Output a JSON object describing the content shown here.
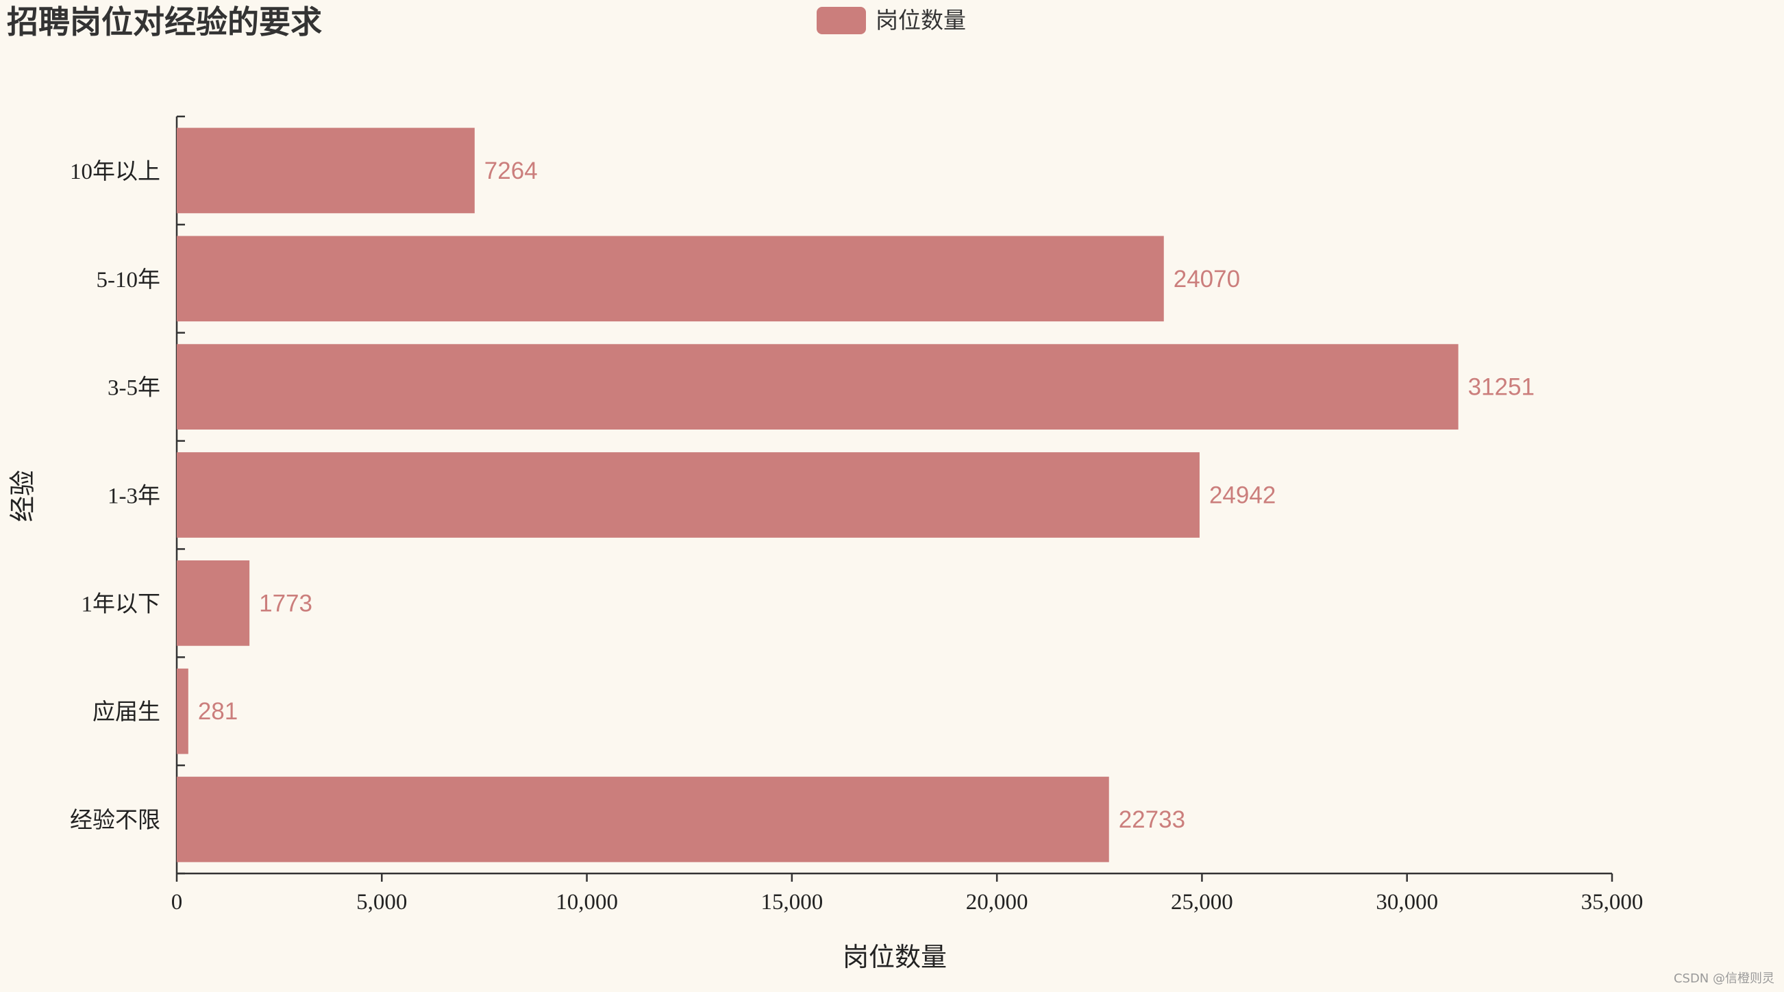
{
  "chart_data": {
    "type": "bar",
    "orientation": "horizontal",
    "title": "招聘岗位对经验的要求",
    "xlabel": "岗位数量",
    "ylabel": "经验",
    "categories": [
      "经验不限",
      "应届生",
      "1年以下",
      "1-3年",
      "3-5年",
      "5-10年",
      "10年以上"
    ],
    "series": [
      {
        "name": "岗位数量",
        "values": [
          22733,
          281,
          1773,
          24942,
          31251,
          24070,
          7264
        ]
      }
    ],
    "xlim": [
      0,
      35000
    ],
    "xticks": [
      0,
      5000,
      10000,
      15000,
      20000,
      25000,
      30000,
      35000
    ],
    "xtick_labels": [
      "0",
      "5,000",
      "10,000",
      "15,000",
      "20,000",
      "25,000",
      "30,000",
      "35,000"
    ],
    "legend_position": "top-center",
    "grid": false,
    "show_value_labels": true,
    "bar_color": "#cb7e7c"
  },
  "watermark": "CSDN @信橙则灵"
}
